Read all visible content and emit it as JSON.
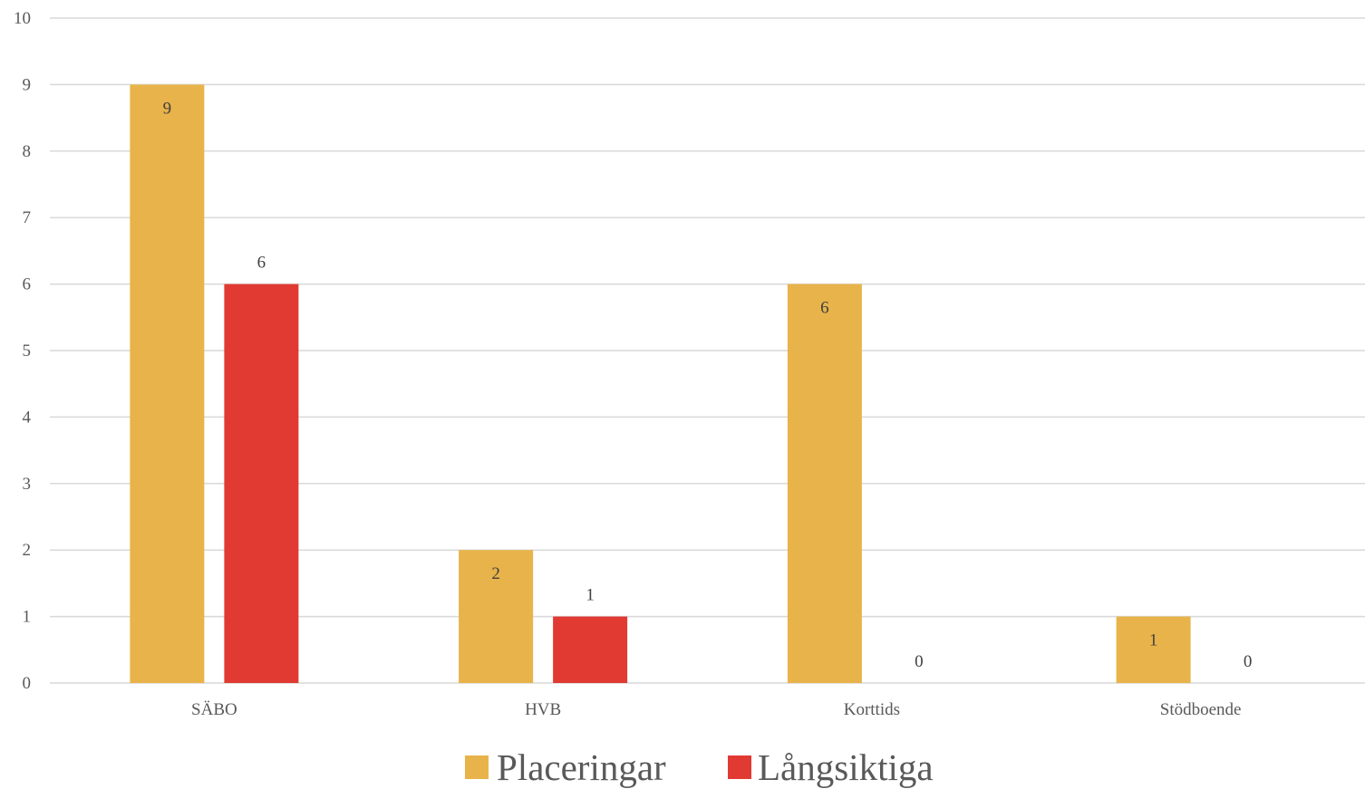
{
  "chart_data": {
    "type": "bar",
    "title": "",
    "xlabel": "",
    "ylabel": "",
    "ylim": [
      0,
      10
    ],
    "yticks": [
      0,
      1,
      2,
      3,
      4,
      5,
      6,
      7,
      8,
      9,
      10
    ],
    "grid": true,
    "legend": "bottom",
    "categories": [
      "SÄBO",
      "HVB",
      "Korttids",
      "Stödboende"
    ],
    "series": [
      {
        "name": "Placeringar",
        "color": "#E8B34A",
        "values": [
          9,
          2,
          6,
          1
        ]
      },
      {
        "name": "Långsiktiga",
        "color": "#E03A33",
        "values": [
          6,
          1,
          0,
          0
        ]
      }
    ]
  }
}
